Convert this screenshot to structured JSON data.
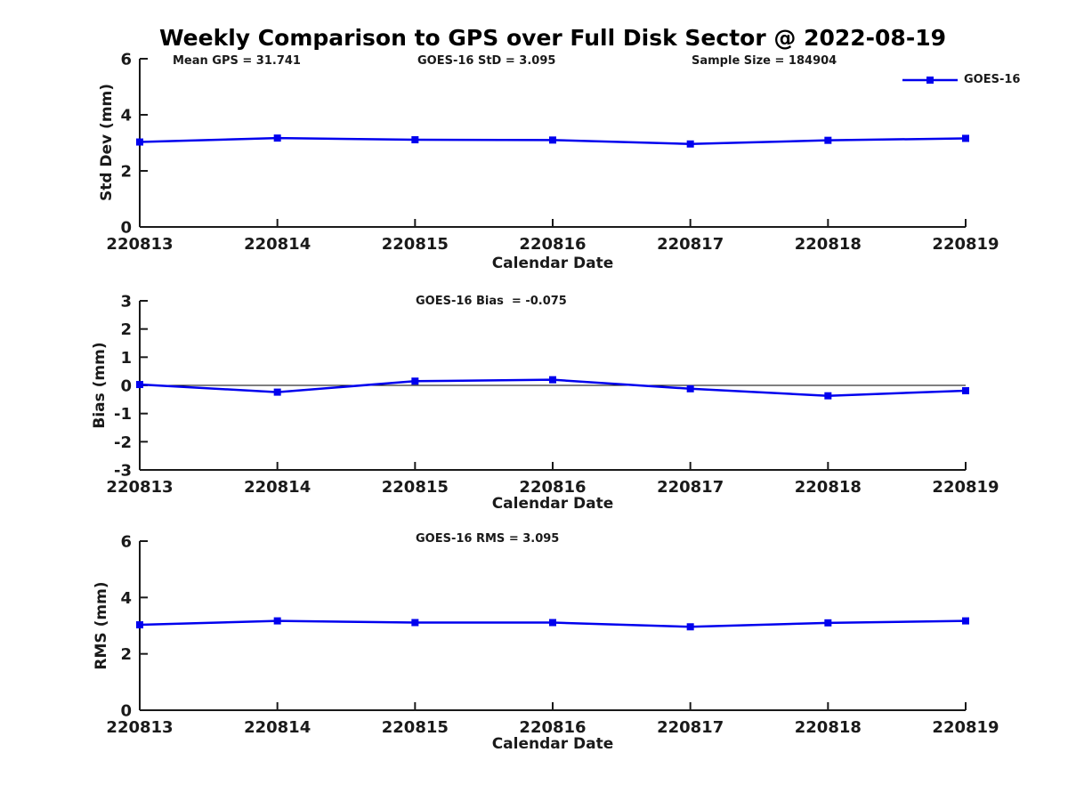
{
  "figure": {
    "title": "Weekly Comparison to GPS over Full Disk Sector @ 2022-08-19",
    "legend": {
      "label": "GOES-16",
      "color": "#0000EE",
      "position": "upper right"
    }
  },
  "chart_data": [
    {
      "type": "line",
      "subplot": "std-dev",
      "categories": [
        "220813",
        "220814",
        "220815",
        "220816",
        "220817",
        "220818",
        "220819"
      ],
      "series": [
        {
          "name": "GOES-16",
          "color": "#0000EE",
          "marker": "square",
          "values": [
            3.03,
            3.17,
            3.11,
            3.1,
            2.96,
            3.09,
            3.16
          ]
        }
      ],
      "xlabel": "Calendar Date",
      "ylabel": "Std Dev (mm)",
      "ylim": [
        0,
        6
      ],
      "yticks": [
        0,
        2,
        4,
        6
      ],
      "grid": false,
      "annotations": [
        "Mean GPS = 31.741",
        "GOES-16 StD = 3.095",
        "Sample Size = 184904"
      ],
      "legend_entries": [
        "GOES-16"
      ]
    },
    {
      "type": "line",
      "subplot": "bias",
      "categories": [
        "220813",
        "220814",
        "220815",
        "220816",
        "220817",
        "220818",
        "220819"
      ],
      "series": [
        {
          "name": "GOES-16",
          "color": "#0000EE",
          "marker": "square",
          "values": [
            0.03,
            -0.24,
            0.15,
            0.2,
            -0.12,
            -0.37,
            -0.19
          ]
        }
      ],
      "xlabel": "Calendar Date",
      "ylabel": "Bias (mm)",
      "ylim": [
        -3,
        3
      ],
      "yticks": [
        -3,
        -2,
        -1,
        0,
        1,
        2,
        3
      ],
      "grid": false,
      "zero_line": true,
      "annotations": [
        "GOES-16 Bias  = -0.075"
      ]
    },
    {
      "type": "line",
      "subplot": "rms",
      "categories": [
        "220813",
        "220814",
        "220815",
        "220816",
        "220817",
        "220818",
        "220819"
      ],
      "series": [
        {
          "name": "GOES-16",
          "color": "#0000EE",
          "marker": "square",
          "values": [
            3.03,
            3.17,
            3.11,
            3.11,
            2.96,
            3.1,
            3.17
          ]
        }
      ],
      "xlabel": "Calendar Date",
      "ylabel": "RMS (mm)",
      "ylim": [
        0,
        6
      ],
      "yticks": [
        0,
        2,
        4,
        6
      ],
      "grid": false,
      "annotations": [
        "GOES-16 RMS = 3.095"
      ]
    }
  ]
}
